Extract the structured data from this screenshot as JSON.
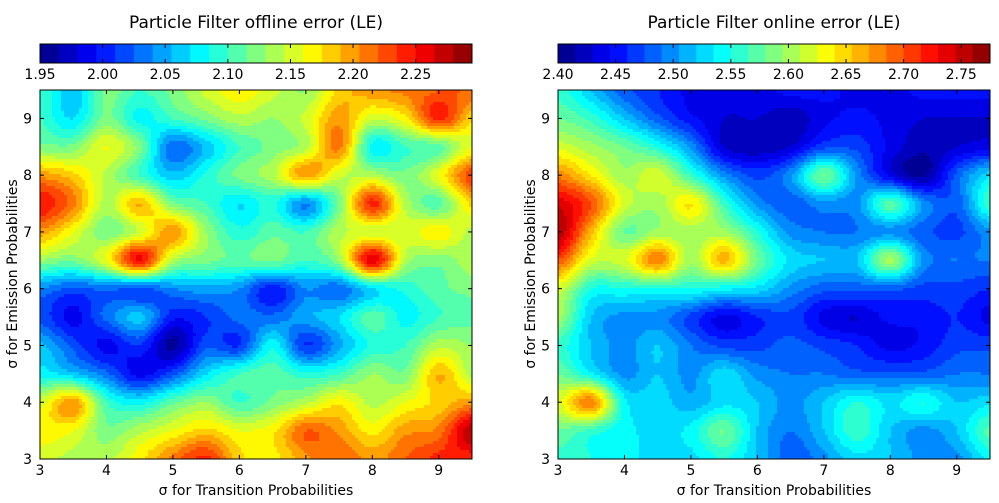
{
  "chart_data": [
    {
      "type": "heatmap",
      "subtype": "filled-contour",
      "title": "Particle Filter offline error (LE)",
      "xlabel": "σ for Transition Probabilities",
      "ylabel": "σ for Emission Probabilities",
      "xlim": [
        3,
        9.5
      ],
      "ylim": [
        3,
        9.5
      ],
      "xticks": [
        "3",
        "4",
        "5",
        "6",
        "7",
        "8",
        "9"
      ],
      "yticks": [
        "3",
        "4",
        "5",
        "6",
        "7",
        "8",
        "9"
      ],
      "colormap": "jet",
      "colorbar": {
        "position": "top",
        "range": [
          1.95,
          2.295
        ],
        "level_step": 0.015,
        "ticks": [
          "1.95",
          "2.00",
          "2.05",
          "2.10",
          "2.15",
          "2.20",
          "2.25"
        ]
      },
      "x": [
        3,
        3.5,
        4,
        4.5,
        5,
        5.5,
        6,
        6.5,
        7,
        7.5,
        8,
        8.5,
        9,
        9.5
      ],
      "y": [
        9.5,
        9,
        8.5,
        8,
        7.5,
        7,
        6.5,
        6,
        5.5,
        5,
        4.5,
        4,
        3.5,
        3
      ],
      "z": [
        [
          2.1,
          2.06,
          2.12,
          2.1,
          2.12,
          2.15,
          2.17,
          2.15,
          2.13,
          2.18,
          2.2,
          2.21,
          2.22,
          2.22
        ],
        [
          2.1,
          2.07,
          2.12,
          2.08,
          2.1,
          2.12,
          2.14,
          2.13,
          2.15,
          2.2,
          2.15,
          2.17,
          2.24,
          2.18
        ],
        [
          2.12,
          2.12,
          2.16,
          2.12,
          2.03,
          2.06,
          2.1,
          2.12,
          2.14,
          2.21,
          2.08,
          2.1,
          2.11,
          2.16
        ],
        [
          2.2,
          2.18,
          2.14,
          2.1,
          2.06,
          2.09,
          2.12,
          2.14,
          2.2,
          2.15,
          2.14,
          2.12,
          2.16,
          2.23
        ],
        [
          2.25,
          2.21,
          2.14,
          2.19,
          2.12,
          2.1,
          2.07,
          2.09,
          2.04,
          2.12,
          2.24,
          2.14,
          2.11,
          2.18
        ],
        [
          2.2,
          2.16,
          2.12,
          2.15,
          2.2,
          2.13,
          2.09,
          2.11,
          2.1,
          2.14,
          2.15,
          2.15,
          2.17,
          2.14
        ],
        [
          2.13,
          2.12,
          2.16,
          2.25,
          2.14,
          2.12,
          2.11,
          2.12,
          2.1,
          2.13,
          2.26,
          2.14,
          2.12,
          2.14
        ],
        [
          2.04,
          2.02,
          2.03,
          2.02,
          2.04,
          2.05,
          2.04,
          2.0,
          2.04,
          2.03,
          2.07,
          2.09,
          2.11,
          2.12
        ],
        [
          2.02,
          1.99,
          2.03,
          2.06,
          2.0,
          2.01,
          2.03,
          2.03,
          2.05,
          2.07,
          2.11,
          2.08,
          2.1,
          2.11
        ],
        [
          2.06,
          2.02,
          1.99,
          2.01,
          1.96,
          2.02,
          2.01,
          2.08,
          2.01,
          2.05,
          2.09,
          2.1,
          2.14,
          2.13
        ],
        [
          2.08,
          2.06,
          2.03,
          1.99,
          2.02,
          2.07,
          2.1,
          2.11,
          2.09,
          2.1,
          2.13,
          2.12,
          2.19,
          2.14
        ],
        [
          2.15,
          2.2,
          2.1,
          2.08,
          2.11,
          2.13,
          2.1,
          2.12,
          2.14,
          2.17,
          2.14,
          2.16,
          2.18,
          2.2
        ],
        [
          2.17,
          2.16,
          2.12,
          2.14,
          2.16,
          2.18,
          2.16,
          2.17,
          2.22,
          2.2,
          2.17,
          2.2,
          2.21,
          2.28
        ],
        [
          2.15,
          2.14,
          2.14,
          2.17,
          2.21,
          2.24,
          2.18,
          2.17,
          2.2,
          2.22,
          2.2,
          2.22,
          2.24,
          2.24
        ]
      ]
    },
    {
      "type": "heatmap",
      "subtype": "filled-contour",
      "title": "Particle Filter online error (LE)",
      "xlabel": "σ for Transition Probabilities",
      "ylabel": "σ for Emission Probabilities",
      "xlim": [
        3,
        9.5
      ],
      "ylim": [
        3,
        9.5
      ],
      "xticks": [
        "3",
        "4",
        "5",
        "6",
        "7",
        "8",
        "9"
      ],
      "yticks": [
        "3",
        "4",
        "5",
        "6",
        "7",
        "8",
        "9"
      ],
      "colormap": "jet",
      "colorbar": {
        "position": "top",
        "range": [
          2.4,
          2.775
        ],
        "level_step": 0.015,
        "ticks": [
          "2.40",
          "2.45",
          "2.50",
          "2.55",
          "2.60",
          "2.65",
          "2.70",
          "2.75"
        ]
      },
      "x": [
        3,
        3.5,
        4,
        4.5,
        5,
        5.5,
        6,
        6.5,
        7,
        7.5,
        8,
        8.5,
        9,
        9.5
      ],
      "y": [
        9.5,
        9,
        8.5,
        8,
        7.5,
        7,
        6.5,
        6,
        5.5,
        5,
        4.5,
        4,
        3.5,
        3
      ],
      "z": [
        [
          2.56,
          2.52,
          2.48,
          2.46,
          2.44,
          2.44,
          2.44,
          2.45,
          2.45,
          2.44,
          2.44,
          2.45,
          2.45,
          2.45
        ],
        [
          2.58,
          2.56,
          2.52,
          2.48,
          2.45,
          2.43,
          2.43,
          2.42,
          2.44,
          2.45,
          2.44,
          2.43,
          2.43,
          2.43
        ],
        [
          2.62,
          2.6,
          2.58,
          2.55,
          2.5,
          2.43,
          2.42,
          2.43,
          2.47,
          2.47,
          2.44,
          2.42,
          2.43,
          2.44
        ],
        [
          2.68,
          2.64,
          2.6,
          2.62,
          2.56,
          2.5,
          2.47,
          2.5,
          2.58,
          2.5,
          2.44,
          2.41,
          2.48,
          2.53
        ],
        [
          2.74,
          2.7,
          2.62,
          2.6,
          2.64,
          2.56,
          2.5,
          2.48,
          2.5,
          2.5,
          2.57,
          2.5,
          2.48,
          2.56
        ],
        [
          2.76,
          2.66,
          2.58,
          2.6,
          2.6,
          2.6,
          2.55,
          2.5,
          2.49,
          2.49,
          2.5,
          2.48,
          2.47,
          2.5
        ],
        [
          2.7,
          2.62,
          2.62,
          2.68,
          2.6,
          2.66,
          2.58,
          2.53,
          2.52,
          2.52,
          2.6,
          2.5,
          2.49,
          2.49
        ],
        [
          2.62,
          2.55,
          2.55,
          2.55,
          2.55,
          2.54,
          2.53,
          2.5,
          2.48,
          2.48,
          2.48,
          2.47,
          2.47,
          2.46
        ],
        [
          2.6,
          2.52,
          2.5,
          2.5,
          2.47,
          2.44,
          2.46,
          2.47,
          2.44,
          2.43,
          2.45,
          2.45,
          2.46,
          2.44
        ],
        [
          2.56,
          2.52,
          2.5,
          2.52,
          2.49,
          2.47,
          2.47,
          2.48,
          2.47,
          2.46,
          2.44,
          2.45,
          2.47,
          2.47
        ],
        [
          2.58,
          2.54,
          2.5,
          2.52,
          2.5,
          2.53,
          2.5,
          2.49,
          2.49,
          2.48,
          2.48,
          2.48,
          2.49,
          2.49
        ],
        [
          2.62,
          2.68,
          2.54,
          2.53,
          2.51,
          2.53,
          2.52,
          2.5,
          2.52,
          2.55,
          2.53,
          2.55,
          2.52,
          2.53
        ],
        [
          2.58,
          2.56,
          2.54,
          2.53,
          2.54,
          2.58,
          2.52,
          2.49,
          2.52,
          2.56,
          2.52,
          2.5,
          2.52,
          2.57
        ],
        [
          2.56,
          2.55,
          2.54,
          2.53,
          2.53,
          2.55,
          2.52,
          2.48,
          2.5,
          2.53,
          2.52,
          2.5,
          2.5,
          2.54
        ]
      ]
    }
  ]
}
